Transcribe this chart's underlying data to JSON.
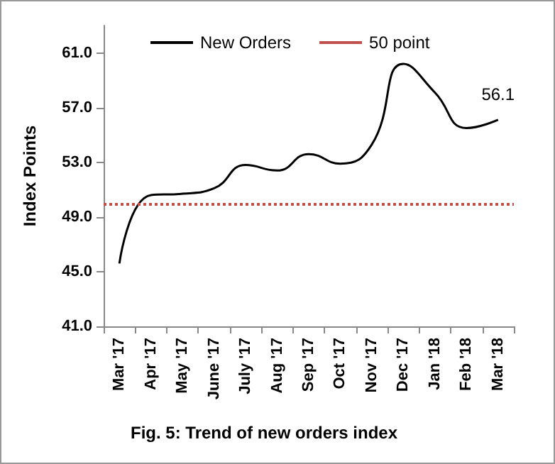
{
  "chart_data": {
    "type": "line",
    "title": "Fig. 5: Trend of new orders index",
    "ylabel": "Index Points",
    "categories": [
      "Mar '17",
      "Apr '17",
      "May '17",
      "June '17",
      "July '17",
      "Aug '17",
      "Sep '17",
      "Oct '17",
      "Nov '17",
      "Dec '17",
      "Jan '18",
      "Feb '18",
      "Mar '18"
    ],
    "series": [
      {
        "name": "New Orders",
        "color": "#000000",
        "values": [
          45.6,
          50.6,
          50.7,
          51.1,
          52.8,
          52.4,
          53.6,
          52.9,
          54.3,
          60.2,
          58.1,
          55.5,
          56.1
        ]
      }
    ],
    "ref_lines": [
      {
        "axis": "y",
        "value": 50,
        "label": "50 point",
        "color": "#c0504d",
        "line_style": "dotted"
      }
    ],
    "annotations": [
      {
        "text": "56.1",
        "x": "Mar '18",
        "y": 56.1
      }
    ],
    "ylim": [
      41,
      63
    ],
    "yticks": [
      {
        "value": 41,
        "label": "41.0"
      },
      {
        "value": 45,
        "label": "45.0"
      },
      {
        "value": 49,
        "label": "49.0"
      },
      {
        "value": 53,
        "label": "53.0"
      },
      {
        "value": 57,
        "label": "57.0"
      },
      {
        "value": 61,
        "label": "61.0"
      }
    ],
    "grid": false,
    "legend": "top",
    "marker": "none",
    "line_style": "solid"
  }
}
